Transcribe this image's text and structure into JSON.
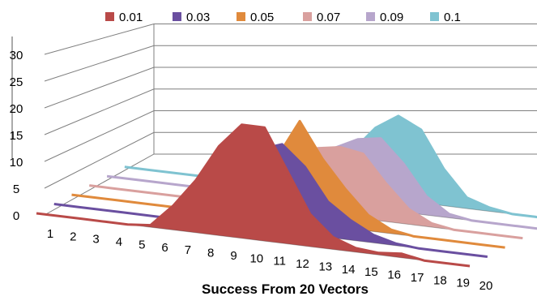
{
  "chart_data": {
    "type": "area",
    "title": "",
    "xlabel": "Success From 20 Vectors",
    "ylabel": "",
    "categories": [
      "1",
      "2",
      "3",
      "4",
      "5",
      "6",
      "7",
      "8",
      "9",
      "10",
      "11",
      "12",
      "13",
      "14",
      "15",
      "16",
      "17",
      "18",
      "19",
      "20"
    ],
    "ylim": [
      0,
      30
    ],
    "yticks": [
      "0",
      "5",
      "10",
      "15",
      "20",
      "25",
      "30"
    ],
    "grid": true,
    "legend_position": "top",
    "three_d": true,
    "series": [
      {
        "name": "0.01",
        "color": "#b94a48",
        "values": [
          0,
          0,
          0,
          0,
          0,
          0.5,
          6,
          13,
          22,
          28,
          28,
          18,
          8,
          3,
          1,
          0.5,
          1,
          0,
          0,
          0
        ]
      },
      {
        "name": "0.03",
        "color": "#6a4fa0",
        "values": [
          0,
          0,
          0,
          0,
          0,
          0,
          1,
          5,
          13,
          20,
          22,
          17,
          9,
          5,
          2,
          0.5,
          0,
          0,
          0,
          0
        ]
      },
      {
        "name": "0.05",
        "color": "#e08a3c",
        "values": [
          0,
          0,
          0,
          0,
          0,
          0,
          0,
          3,
          10,
          16,
          26,
          17,
          10,
          4,
          1,
          0,
          0,
          0,
          0,
          0
        ]
      },
      {
        "name": "0.07",
        "color": "#d9a09e",
        "values": [
          0,
          0,
          0,
          0,
          0,
          0,
          0,
          1,
          5,
          11,
          17,
          18,
          17,
          10,
          4,
          1,
          0,
          0,
          0,
          0
        ]
      },
      {
        "name": "0.09",
        "color": "#b7a6cc",
        "values": [
          0,
          0,
          0,
          0,
          0,
          0,
          0,
          1,
          4,
          9,
          15,
          18,
          19,
          13,
          5,
          1,
          0,
          0,
          0,
          0
        ]
      },
      {
        "name": "0.1",
        "color": "#7fc3d1",
        "values": [
          0,
          0,
          0,
          0,
          0,
          0,
          0,
          0,
          2,
          6,
          12,
          19,
          23,
          20,
          10,
          3,
          1,
          0,
          0,
          0
        ]
      }
    ]
  }
}
